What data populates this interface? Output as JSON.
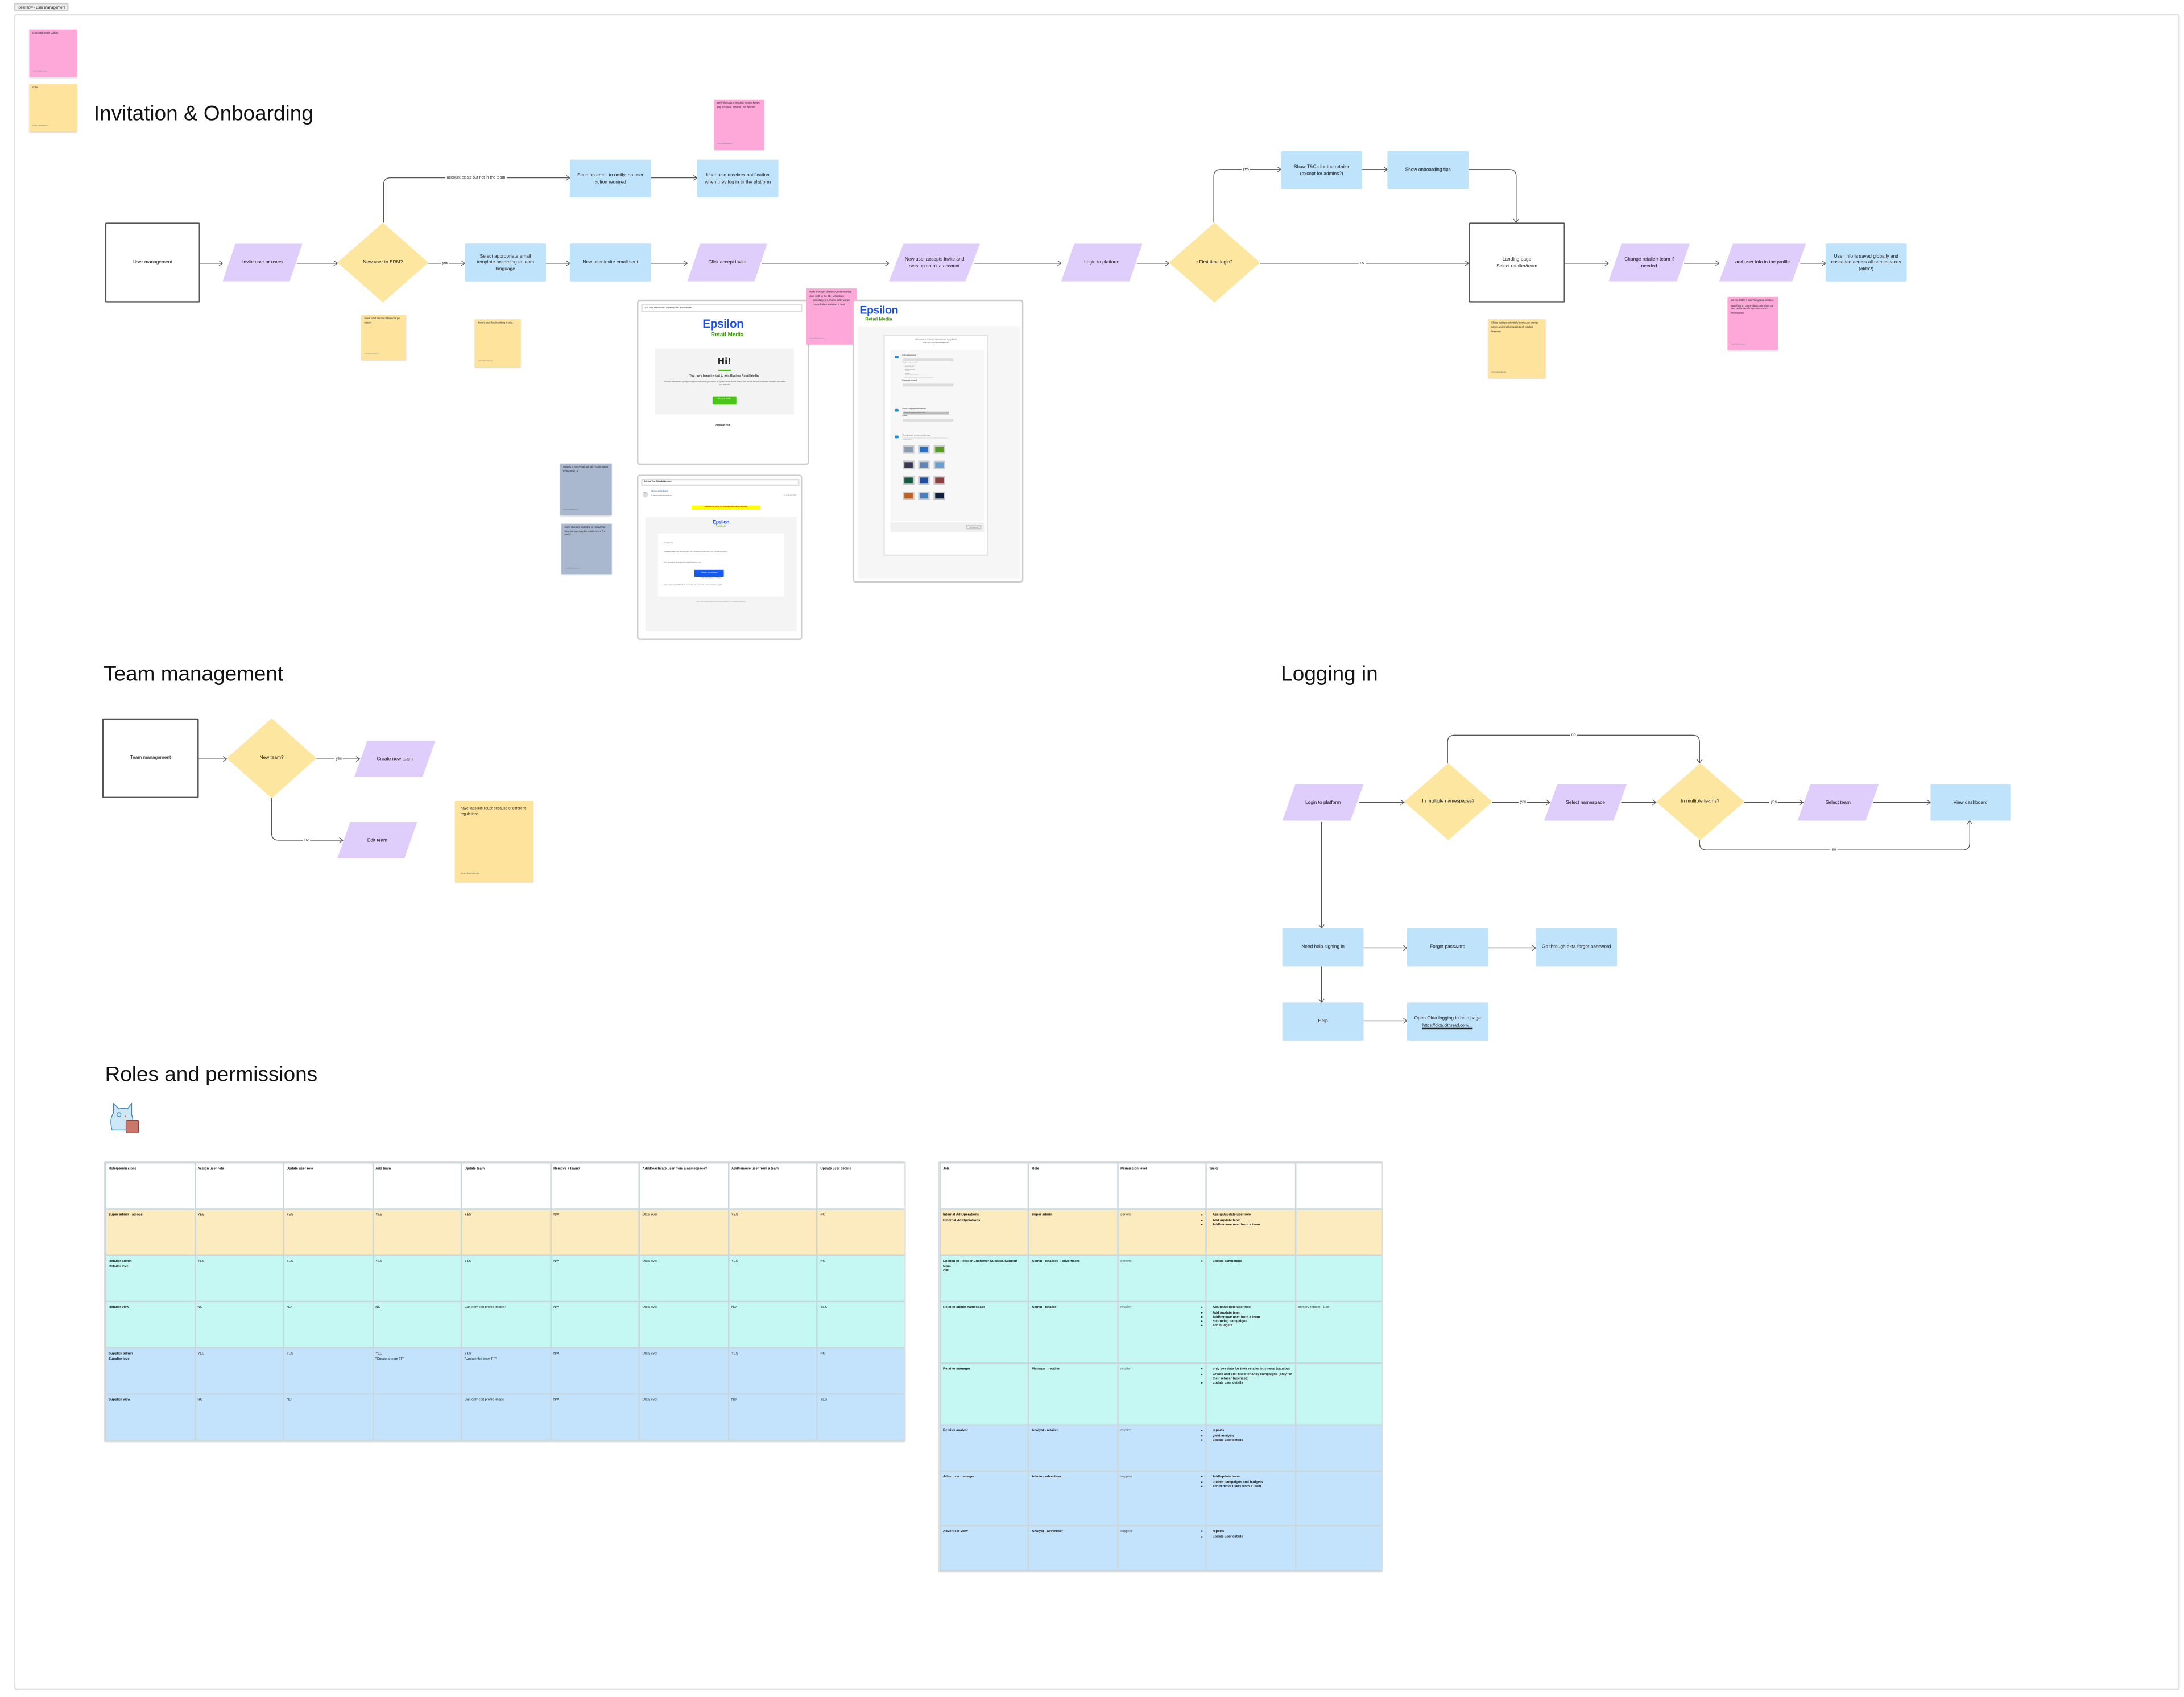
{
  "tab": {
    "label": "Ideal flow - user management"
  },
  "colors": {
    "sticky_pink": "#fea8d9",
    "sticky_yellow": "#fde39c",
    "sticky_grey": "#aab8cf",
    "process_blue": "#c0e3fc",
    "io_purple": "#dfcdfb",
    "decision_yellow": "#fde69f",
    "row_super": "#fdebc0",
    "row_retailer": "#c6f8f3",
    "row_supplier": "#c2e3fb"
  },
  "legend_stickies": [
    {
      "text": "check with Uncle Callum",
      "author": "Anara Davletaliyeva",
      "color": "pink"
    },
    {
      "text": "notes",
      "author": "Anara Davletaliyeva",
      "color": "yellow"
    }
  ],
  "invitation": {
    "title": "Invitation & Onboarding",
    "nodes": {
      "user_management": "User management",
      "invite_users": "Invite user or users",
      "new_user_erm": "New user to ERM?",
      "select_template": "Select appropriate email template according to team language",
      "invite_sent": "New user invite email sent",
      "click_accept": "Click accept invite",
      "accepts_invite": "New user accepts invite and sets up an okta account",
      "login": "Login to platform",
      "first_time": "• First time login?",
      "landing": "Landing page\nSelect retailer/team",
      "change_retailer": "Change retailer/ team if needed",
      "add_user_info": "add user info in the profile",
      "info_saved": "User info is saved globally and cascaded across all namespaces (okta?)",
      "send_email": "Send an email to notify, no user action required",
      "notification": "User also receives notification when they log in to the platform",
      "show_tcs": "Show T&Cs for the retailer (except for admins?)",
      "onboarding_tips": "Show onboarding tips"
    },
    "edge_labels": {
      "yes": "yes",
      "account_exists": "account exists but not in the team",
      "no": "no",
      "yes_first": "yes"
    },
    "stickies": [
      {
        "text": "verify if accept is needed? no one knows why it is there, assume - not needed",
        "author": "Anara Davletaliyeva"
      },
      {
        "text": "check what are the differences per retailer",
        "author": "Anara Davletaliyeva"
      },
      {
        "text": "there is user locale setting in okta",
        "author": "Anara Davletaliyeva"
      },
      {
        "text": "verify if we can skip the current step that does smth in the DB - verification",
        "bullet": "potentially yes, maybe entity will be created when invitation is sent",
        "author": "Anara Davletaliyeva"
      },
      {
        "text": "support is removing login with Azure button for the new UI",
        "author": "Anara Davletaliyeva"
      },
      {
        "text": "some changes regarding to Nectar that they manage supplier emails Azure 3rd party?",
        "author": "Anara Davletaliyeva"
      },
      {
        "text": "Global settings potentially in okta, eg change names which will cascade to all retailers",
        "text2": "language",
        "author": "Anara Davletaliyeva"
      },
      {
        "text": "store in Okta? it wasn't migrated last time",
        "text2": "part of GTM? citrus client could show DB user profile benefit: updates across namespaces",
        "author": "Anara Davletaliyeva"
      }
    ],
    "invite_email": {
      "subject": "You have been invited to join Epsilon Retail Media!",
      "logo_main": "Epsilon",
      "logo_sub": "Retail Media",
      "greeting": "Hi!",
      "heading": "You have been invited to join Epsilon Retail Media!",
      "body": "You have been invited by amy.wood@citrusad.com to join a team on Epsilon Retail Media! Please click the link below to accept the invitation and create your account:",
      "button": "Accept Invite",
      "footer": "citrusad.com"
    },
    "activate_email": {
      "subject": "Activate Your CitrusAd Account",
      "avatar": "CA",
      "sender": "CitrusAd Authentication",
      "to": "To: amy.wood+test@citrusad.com",
      "date": "Fri 2024-11-15 15:21",
      "banner": "External to the Groupe / en provenance de l'extérieur du Groupe",
      "logo_main": "Epsilon",
      "logo_sub": "Retail Media",
      "greeting": "Hi Amy New,",
      "body": "Please activate your account and set a password to access your CitrusAd platform.",
      "username": "Your username is amy.wood+test@citrusad.com",
      "button": "Activate Your Account",
      "expiry": "This link expires in 7 days.",
      "support": "If you experience difficulties accessing your account, please contact support.",
      "footer": "This is an automatically generated message. Replies are not monitored or answered."
    },
    "okta_page": {
      "logo_main": "Epsilon",
      "logo_sub": "Retail Media",
      "welcome": "Welcome to Citrus International, Amy New!",
      "subtitle": "Create your Citrus International account",
      "new_password_label": "Enter new password",
      "requirements_label": "Password requirements:",
      "requirements": [
        "At least 12 characters",
        "A lowercase letter",
        "An uppercase letter",
        "A number",
        "A symbol",
        "No parts of your username",
        "Your password cannot be any of your last 24 passwords"
      ],
      "repeat_label": "Repeat new password",
      "question_label": "Choose a forgot password question",
      "question_value": "What is the food you least liked as a child?",
      "answer_label": "Answer",
      "image_label": "Click a picture to choose a security image",
      "image_help": "Your security image gives you additional assurance that you are logging into Okta, and not a fraudulent website.",
      "submit": "Create My Account"
    }
  },
  "team": {
    "title": "Team management",
    "nodes": {
      "team_management": "Team management",
      "new_team": "New team?",
      "create": "Create new team",
      "edit": "Edit team"
    },
    "edge_labels": {
      "yes": "yes",
      "no": "no"
    },
    "sticky": {
      "text": "have tags like liquor because of different regulations",
      "author": "Anara Davletaliyeva"
    }
  },
  "logging": {
    "title": "Logging in",
    "nodes": {
      "login": "Login to platform",
      "multi_ns": "In multiple namespaces?",
      "select_ns": "Select namespace",
      "multi_teams": "In multiple teams?",
      "select_team": "Select team",
      "dashboard": "View dashboard",
      "need_help": "Need help signing in",
      "forget": "Forget password",
      "okta_forget": "Go through okta forget password",
      "help": "Help",
      "okta_help": "Open Okta logging in help page",
      "okta_help_link": "https://okta.citrusad.com/..."
    },
    "edge_labels": {
      "yes1": "yes",
      "yes2": "yes",
      "no_top": "no",
      "no_bottom": "no"
    }
  },
  "roles": {
    "title": "Roles and permissions",
    "permissions_table": {
      "headers": [
        "Role/permissions",
        "Assign user role",
        "Update user role",
        "Add team",
        "Update team",
        "Remove a team?",
        "Add/Deactivate user from a namespace?",
        "Add/remove user from a team",
        "Update user details"
      ],
      "rows": [
        {
          "tier": "super",
          "cells": [
            "Super admin - ad ops",
            "YES",
            "YES",
            "YES",
            "YES",
            "N/A",
            "Okta level",
            "YES",
            "NO"
          ]
        },
        {
          "tier": "retailer",
          "cells": [
            "Retailer admin\nRetailer level",
            "YES",
            "YES",
            "YES",
            "YES",
            "N/A",
            "Okta level",
            "YES",
            "NO"
          ]
        },
        {
          "tier": "retailer",
          "cells": [
            "Retailer view",
            "NO",
            "NO",
            "NO",
            "Can only edit profile image?",
            "N/A",
            "Okta level",
            "NO",
            "YES"
          ]
        },
        {
          "tier": "supplier",
          "cells": [
            "Supplier admin\nSupplier level",
            "YES",
            "YES",
            "YES\n\"Create a team FF\"",
            "YES\n\"Update the team FF\"",
            "N/A",
            "Okta level",
            "YES",
            "NO"
          ]
        },
        {
          "tier": "supplier",
          "cells": [
            "Supplier view",
            "NO",
            "NO",
            "",
            "Can only edit profile image",
            "N/A",
            "Okta level",
            "NO",
            "YES"
          ]
        }
      ]
    },
    "jobs_table": {
      "headers": [
        "Job",
        "Role",
        "Permission level",
        "Tasks",
        ""
      ],
      "rows": [
        {
          "tier": "super",
          "job": "Internal Ad Operations\nExternal Ad Operations",
          "role": "Super admin",
          "level": "generic",
          "tasks": [
            "Assign/update user role",
            "Add /update team",
            "Add/remove user from a team"
          ],
          "note": ""
        },
        {
          "tier": "retailer",
          "job": "Epsilon or Retailer Customer Success/Support team\nCIE",
          "role": "Admin - retailers + advertisers",
          "level": "generic",
          "tasks": [
            "update campaigns"
          ],
          "note": ""
        },
        {
          "tier": "retailer",
          "job": "Retailer admin namespace",
          "role": "Admin - retailer",
          "level": "retailer",
          "tasks": [
            "Assign/update user role",
            "Add /update team",
            "Add/remove user from a team",
            "approving campaigns",
            "add budgets"
          ],
          "note": "primary retailer - Edit"
        },
        {
          "tier": "retailer",
          "job": "Retailer manager",
          "role": "Manager - retailer",
          "level": "retailer",
          "tasks": [
            "only see data for their retailer business (catalog)",
            "Create and edit fixed tenancy campaigns  (only for their retailer business)",
            "update user details"
          ],
          "note": ""
        },
        {
          "tier": "supplier",
          "job": "Retailer analyst",
          "role": "Analyst - retailer",
          "level": "retailer",
          "tasks": [
            "reports",
            "yield analysis",
            "update user details"
          ],
          "note": ""
        },
        {
          "tier": "supplier",
          "job": "Advertiser manager",
          "role": "Admin - advertiser",
          "level": "supplier",
          "tasks": [
            "Add/update team",
            "update campaigns and budgets",
            "add/remove users from a team"
          ],
          "note": ""
        },
        {
          "tier": "supplier",
          "job": "Advertiser view",
          "role": "Analyst - advertiser",
          "level": "supplier",
          "tasks": [
            "reports",
            "update user details"
          ],
          "note": ""
        }
      ]
    }
  }
}
